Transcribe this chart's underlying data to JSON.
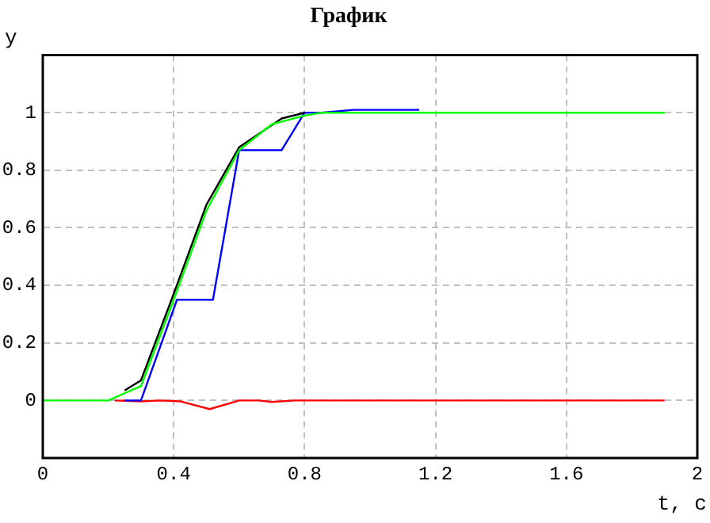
{
  "chart_data": {
    "type": "line",
    "title": "График",
    "xlabel": "t, c",
    "ylabel": "y",
    "xlim": [
      0,
      2
    ],
    "xticks": [
      0,
      0.4,
      0.8,
      1.2,
      1.6,
      2
    ],
    "ylim": [
      -0.2,
      1.2
    ],
    "yticks": [
      0,
      0.2,
      0.4,
      0.6,
      0.8,
      1
    ],
    "grid": true,
    "legend": false,
    "marker": "none",
    "line_style": "solid",
    "series": [
      {
        "color": "#ff0000",
        "x": [
          0.22,
          0.3,
          0.36,
          0.42,
          0.51,
          0.6,
          0.66,
          0.7,
          0.77,
          1.9
        ],
        "values": [
          0,
          -0.003,
          0,
          -0.003,
          -0.03,
          0,
          0,
          -0.005,
          0,
          0
        ]
      },
      {
        "color": "#0000ff",
        "x": [
          0.25,
          0.3,
          0.41,
          0.52,
          0.6,
          0.73,
          0.8,
          0.85,
          0.95,
          1.15
        ],
        "values": [
          0,
          0,
          0.35,
          0.35,
          0.87,
          0.87,
          1,
          1,
          1.01,
          1.01
        ]
      },
      {
        "color": "#000000",
        "x": [
          0.25,
          0.3,
          0.4,
          0.5,
          0.6,
          0.73,
          0.8
        ],
        "values": [
          0.035,
          0.07,
          0.37,
          0.68,
          0.88,
          0.98,
          1
        ]
      },
      {
        "color": "#00ff00",
        "x": [
          0,
          0.2,
          0.3,
          0.4,
          0.5,
          0.6,
          0.7,
          0.8,
          0.85,
          1.9
        ],
        "values": [
          0,
          0,
          0.05,
          0.35,
          0.66,
          0.87,
          0.96,
          0.99,
          1,
          1
        ]
      }
    ]
  }
}
